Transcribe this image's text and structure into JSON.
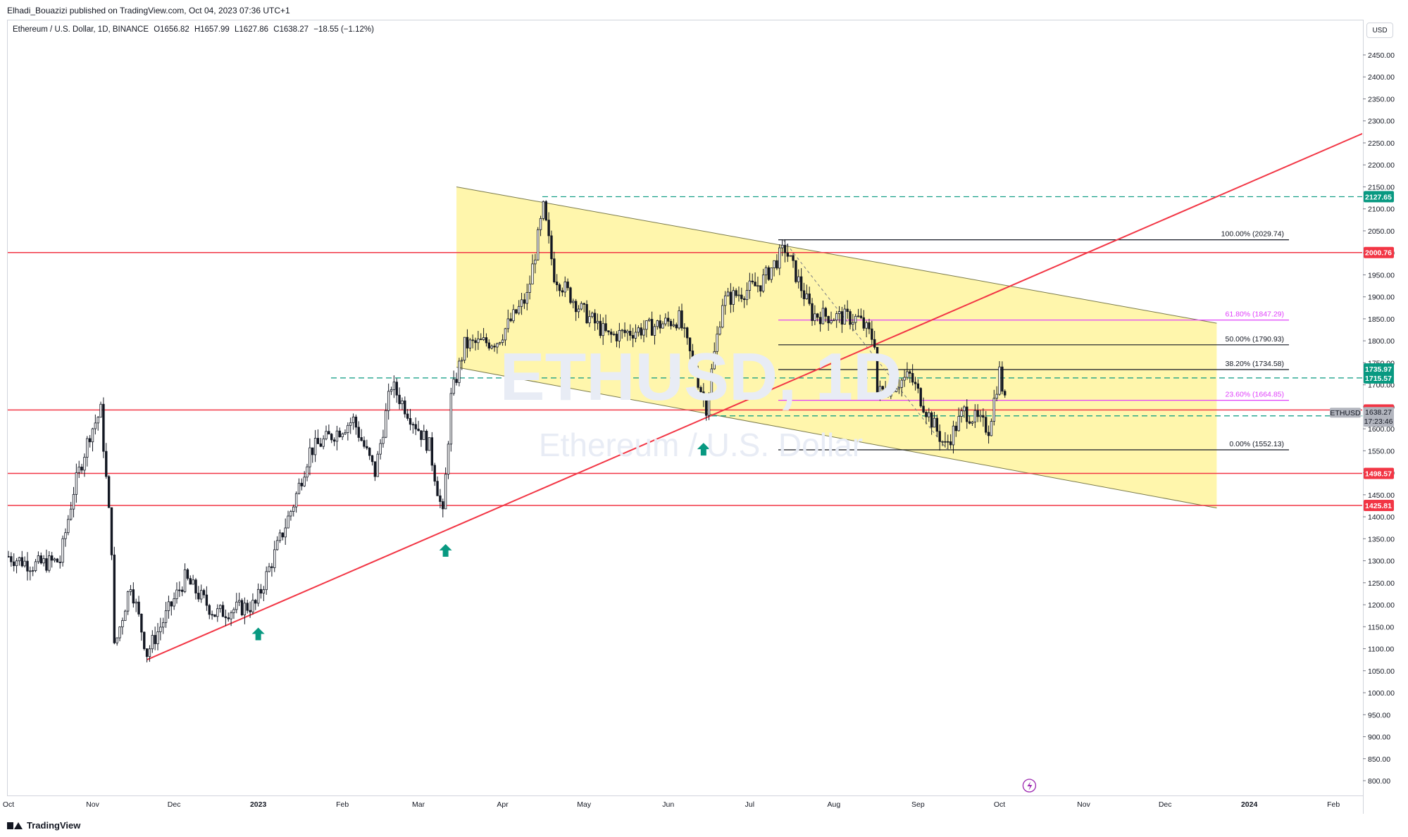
{
  "header": {
    "publisher": "Elhadi_Bouazizi published on TradingView.com, Oct 04, 2023 07:36 UTC+1",
    "symbol": "Ethereum / U.S. Dollar, 1D, BINANCE",
    "open": "O1656.82",
    "high": "H1657.99",
    "low": "L1627.86",
    "close": "C1638.27",
    "change": "−18.55 (−1.12%)"
  },
  "watermark": {
    "ticker": "ETHUSD, 1D",
    "name": "Ethereum / U.S. Dollar"
  },
  "currency": "USD",
  "footer": {
    "brand": "TradingView"
  },
  "colors": {
    "up": "#131722",
    "down": "#131722",
    "red": "#f23645",
    "teal": "#089981",
    "magenta": "#e040fb",
    "channel": "#fff59d"
  },
  "chart_data": {
    "type": "candlestick",
    "y_axis": {
      "ticks": [
        "2450.00",
        "2400.00",
        "2350.00",
        "2300.00",
        "2250.00",
        "2200.00",
        "2150.00",
        "2100.00",
        "2050.00",
        "2000.00",
        "1950.00",
        "1900.00",
        "1850.00",
        "1800.00",
        "1750.00",
        "1700.00",
        "1650.00",
        "1600.00",
        "1550.00",
        "1500.00",
        "1450.00",
        "1400.00",
        "1350.00",
        "1300.00",
        "1250.00",
        "1200.00",
        "1150.00",
        "1100.00",
        "1050.00",
        "1000.00",
        "950.00",
        "900.00",
        "850.00",
        "800.00"
      ],
      "range": [
        780,
        2500
      ]
    },
    "x_axis": {
      "labels": [
        {
          "label": "Oct",
          "date": "2022-10-01"
        },
        {
          "label": "Nov",
          "date": "2022-11-01"
        },
        {
          "label": "Dec",
          "date": "2022-12-01"
        },
        {
          "label": "2023",
          "date": "2023-01-01"
        },
        {
          "label": "Feb",
          "date": "2023-02-01"
        },
        {
          "label": "Mar",
          "date": "2023-03-01"
        },
        {
          "label": "Apr",
          "date": "2023-04-01"
        },
        {
          "label": "May",
          "date": "2023-05-01"
        },
        {
          "label": "Jun",
          "date": "2023-06-01"
        },
        {
          "label": "Jul",
          "date": "2023-07-01"
        },
        {
          "label": "Aug",
          "date": "2023-08-01"
        },
        {
          "label": "Sep",
          "date": "2023-09-01"
        },
        {
          "label": "Oct",
          "date": "2023-10-01"
        },
        {
          "label": "Nov",
          "date": "2023-11-01"
        },
        {
          "label": "Dec",
          "date": "2023-12-01"
        },
        {
          "label": "2024",
          "date": "2024-01-01"
        },
        {
          "label": "Feb",
          "date": "2024-02-01"
        }
      ]
    },
    "price_path": [
      {
        "date": "2022-10-01",
        "price": 1310
      },
      {
        "date": "2022-10-10",
        "price": 1290
      },
      {
        "date": "2022-10-20",
        "price": 1300
      },
      {
        "date": "2022-10-25",
        "price": 1460
      },
      {
        "date": "2022-10-31",
        "price": 1590
      },
      {
        "date": "2022-11-04",
        "price": 1640
      },
      {
        "date": "2022-11-08",
        "price": 1330
      },
      {
        "date": "2022-11-09",
        "price": 1100
      },
      {
        "date": "2022-11-15",
        "price": 1250
      },
      {
        "date": "2022-11-21",
        "price": 1090
      },
      {
        "date": "2022-12-05",
        "price": 1260
      },
      {
        "date": "2022-12-16",
        "price": 1180
      },
      {
        "date": "2022-12-31",
        "price": 1200
      },
      {
        "date": "2023-01-14",
        "price": 1430
      },
      {
        "date": "2023-01-20",
        "price": 1550
      },
      {
        "date": "2023-02-05",
        "price": 1620
      },
      {
        "date": "2023-02-13",
        "price": 1500
      },
      {
        "date": "2023-02-19",
        "price": 1700
      },
      {
        "date": "2023-03-05",
        "price": 1560
      },
      {
        "date": "2023-03-10",
        "price": 1400
      },
      {
        "date": "2023-03-13",
        "price": 1670
      },
      {
        "date": "2023-03-18",
        "price": 1790
      },
      {
        "date": "2023-03-30",
        "price": 1800
      },
      {
        "date": "2023-04-10",
        "price": 1900
      },
      {
        "date": "2023-04-16",
        "price": 2100
      },
      {
        "date": "2023-04-20",
        "price": 1950
      },
      {
        "date": "2023-04-30",
        "price": 1870
      },
      {
        "date": "2023-05-10",
        "price": 1810
      },
      {
        "date": "2023-05-25",
        "price": 1830
      },
      {
        "date": "2023-06-05",
        "price": 1850
      },
      {
        "date": "2023-06-10",
        "price": 1750
      },
      {
        "date": "2023-06-15",
        "price": 1650
      },
      {
        "date": "2023-06-21",
        "price": 1890
      },
      {
        "date": "2023-07-05",
        "price": 1930
      },
      {
        "date": "2023-07-14",
        "price": 2010
      },
      {
        "date": "2023-07-24",
        "price": 1860
      },
      {
        "date": "2023-08-10",
        "price": 1850
      },
      {
        "date": "2023-08-16",
        "price": 1800
      },
      {
        "date": "2023-08-17",
        "price": 1680
      },
      {
        "date": "2023-08-29",
        "price": 1720
      },
      {
        "date": "2023-09-05",
        "price": 1630
      },
      {
        "date": "2023-09-11",
        "price": 1560
      },
      {
        "date": "2023-09-18",
        "price": 1640
      },
      {
        "date": "2023-09-27",
        "price": 1600
      },
      {
        "date": "2023-10-01",
        "price": 1730
      },
      {
        "date": "2023-10-03",
        "price": 1660
      },
      {
        "date": "2023-10-04",
        "price": 1638
      }
    ],
    "horizontal_lines": [
      {
        "price": 2000.76,
        "label": "2000.76",
        "color": "#f23645",
        "style": "solid"
      },
      {
        "price": 1642.84,
        "label": "1642.84",
        "color": "#f23645",
        "style": "solid"
      },
      {
        "price": 1498.57,
        "label": "1498.57",
        "color": "#f23645",
        "style": "solid"
      },
      {
        "price": 1425.81,
        "label": "1425.81",
        "color": "#f23645",
        "style": "solid"
      },
      {
        "price": 2127.65,
        "label": "2127.65",
        "color": "#089981",
        "style": "dashed"
      },
      {
        "price": 1715.57,
        "label": "1715.57",
        "color": "#089981",
        "style": "dashed"
      },
      {
        "price": 1629.41,
        "label": "1629.41",
        "color": "#089981",
        "style": "dashed"
      }
    ],
    "price_labels": [
      {
        "price": 1735.97,
        "label": "1735.97",
        "color": "#089981"
      }
    ],
    "last_price": {
      "symbol": "ETHUSD",
      "price": 1638.27,
      "label": "1638.27",
      "countdown": "17:23:46"
    },
    "fibonacci": [
      {
        "level": "100.00%",
        "price": 2029.74,
        "label": "100.00% (2029.74)",
        "color": "#131722"
      },
      {
        "level": "61.80%",
        "price": 1847.29,
        "label": "61.80% (1847.29)",
        "color": "#e040fb"
      },
      {
        "level": "50.00%",
        "price": 1790.93,
        "label": "50.00% (1790.93)",
        "color": "#131722"
      },
      {
        "level": "38.20%",
        "price": 1734.58,
        "label": "38.20% (1734.58)",
        "color": "#131722"
      },
      {
        "level": "23.60%",
        "price": 1664.85,
        "label": "23.60% (1664.85)",
        "color": "#e040fb"
      },
      {
        "level": "0.00%",
        "price": 1552.13,
        "label": "0.00% (1552.13)",
        "color": "#131722"
      }
    ],
    "descending_channel": {
      "upper": [
        {
          "date": "2023-03-15",
          "price": 2150
        },
        {
          "date": "2023-12-20",
          "price": 1840
        }
      ],
      "lower": [
        {
          "date": "2023-03-15",
          "price": 1740
        },
        {
          "date": "2023-12-20",
          "price": 1420
        }
      ],
      "fill": "#fff59d"
    },
    "trendline": {
      "from": {
        "date": "2022-11-21",
        "price": 1075
      },
      "to": {
        "date": "2024-02-15",
        "price": 2280
      },
      "color": "#f23645"
    },
    "arrows": [
      {
        "date": "2023-01-01",
        "price": 1180
      },
      {
        "date": "2023-03-11",
        "price": 1370
      },
      {
        "date": "2023-06-14",
        "price": 1600
      }
    ]
  }
}
